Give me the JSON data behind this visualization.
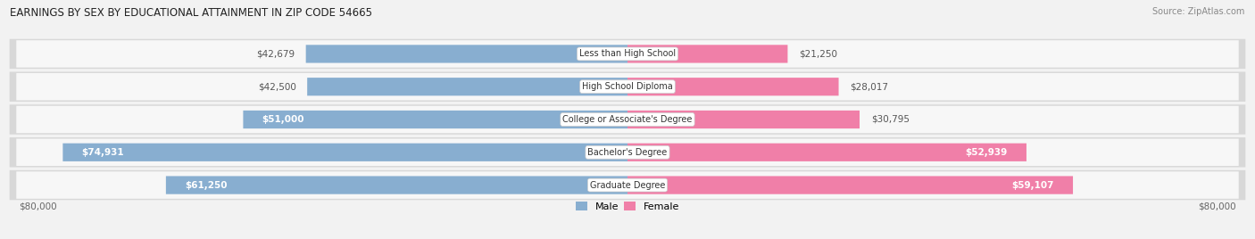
{
  "title": "EARNINGS BY SEX BY EDUCATIONAL ATTAINMENT IN ZIP CODE 54665",
  "source": "Source: ZipAtlas.com",
  "categories": [
    "Less than High School",
    "High School Diploma",
    "College or Associate's Degree",
    "Bachelor's Degree",
    "Graduate Degree"
  ],
  "male_values": [
    42679,
    42500,
    51000,
    74931,
    61250
  ],
  "female_values": [
    21250,
    28017,
    30795,
    52939,
    59107
  ],
  "male_color": "#88aed0",
  "female_color": "#f07fa8",
  "max_value": 80000,
  "background_color": "#f2f2f2",
  "row_bg_outer": "#d8d8d8",
  "row_bg_inner": "#f7f7f7",
  "axis_label_left": "$80,000",
  "axis_label_right": "$80,000",
  "inside_label_threshold": 48000
}
